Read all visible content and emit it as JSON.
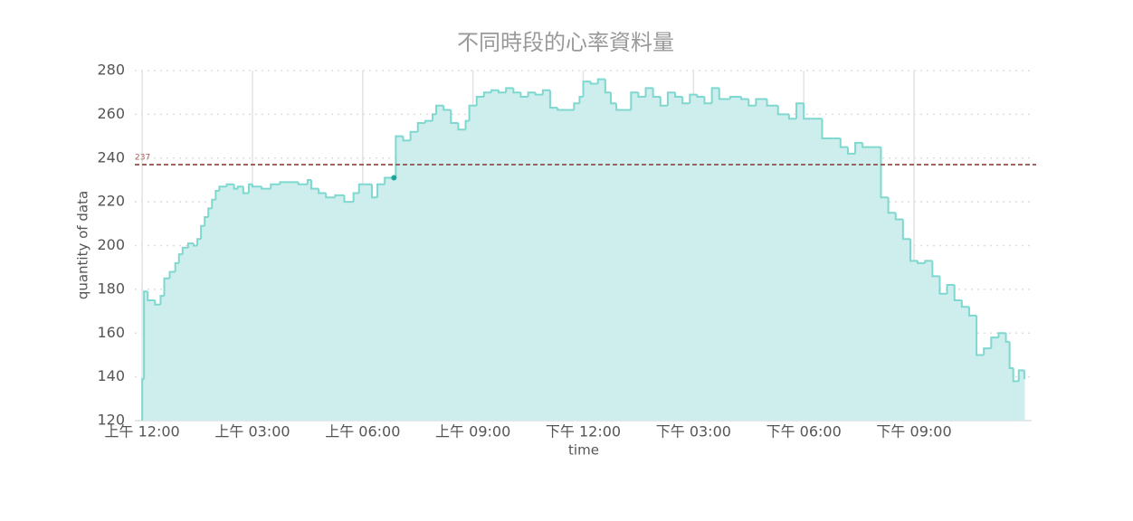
{
  "chart_data": {
    "type": "step-area",
    "title": "不同時段的心率資料量",
    "x_label": "time",
    "y_label": "quantity of data",
    "xlim": [
      -0.2,
      24.2
    ],
    "ylim": [
      120,
      280
    ],
    "xticks": [
      {
        "value": 0,
        "label": "上午 12:00"
      },
      {
        "value": 3,
        "label": "上午 03:00"
      },
      {
        "value": 6,
        "label": "上午 06:00"
      },
      {
        "value": 9,
        "label": "上午 09:00"
      },
      {
        "value": 12,
        "label": "下午 12:00"
      },
      {
        "value": 15,
        "label": "下午 03:00"
      },
      {
        "value": 18,
        "label": "下午 06:00"
      },
      {
        "value": 21,
        "label": "下午 09:00"
      }
    ],
    "yticks": [
      120,
      140,
      160,
      180,
      200,
      220,
      240,
      260,
      280
    ],
    "grid": true,
    "color": "#7fd8cf",
    "fill": "#cdeeed",
    "reference_line": {
      "value": 237,
      "color": "#a0625a"
    },
    "highlight": {
      "x": 6.85,
      "y": 231,
      "color": "#1aa89a"
    },
    "x": [
      0,
      0.05,
      0.15,
      0.35,
      0.5,
      0.6,
      0.75,
      0.9,
      1.0,
      1.1,
      1.25,
      1.4,
      1.5,
      1.6,
      1.7,
      1.8,
      1.9,
      2.0,
      2.1,
      2.3,
      2.5,
      2.6,
      2.75,
      2.9,
      3.0,
      3.25,
      3.5,
      3.75,
      4.0,
      4.25,
      4.5,
      4.6,
      4.8,
      5.0,
      5.25,
      5.5,
      5.75,
      5.9,
      6.1,
      6.25,
      6.4,
      6.6,
      6.85,
      6.9,
      7.1,
      7.3,
      7.5,
      7.7,
      7.9,
      8.0,
      8.2,
      8.4,
      8.6,
      8.8,
      8.9,
      9.1,
      9.3,
      9.5,
      9.7,
      9.9,
      10.1,
      10.3,
      10.5,
      10.7,
      10.9,
      11.1,
      11.3,
      11.5,
      11.75,
      11.9,
      12.0,
      12.2,
      12.4,
      12.6,
      12.75,
      12.9,
      13.1,
      13.3,
      13.5,
      13.7,
      13.9,
      14.1,
      14.3,
      14.5,
      14.7,
      14.9,
      15.1,
      15.3,
      15.5,
      15.7,
      16.0,
      16.3,
      16.5,
      16.7,
      17.0,
      17.3,
      17.6,
      17.8,
      18.0,
      18.3,
      18.5,
      18.8,
      19.0,
      19.2,
      19.4,
      19.6,
      19.8,
      20.0,
      20.1,
      20.3,
      20.5,
      20.7,
      20.9,
      21.1,
      21.3,
      21.5,
      21.7,
      21.9,
      22.1,
      22.3,
      22.5,
      22.7,
      22.9,
      23.1,
      23.3,
      23.5,
      23.6,
      23.7,
      23.85,
      24.0
    ],
    "values": [
      139,
      179,
      175,
      173,
      177,
      185,
      188,
      192,
      196,
      199,
      201,
      200,
      203,
      209,
      213,
      217,
      221,
      225,
      227,
      228,
      226,
      227,
      224,
      228,
      227,
      226,
      228,
      229,
      229,
      228,
      230,
      226,
      224,
      222,
      223,
      220,
      224,
      228,
      228,
      222,
      228,
      231,
      231,
      250,
      248,
      252,
      256,
      257,
      260,
      264,
      262,
      256,
      253,
      257,
      264,
      268,
      270,
      271,
      270,
      272,
      270,
      268,
      270,
      269,
      271,
      263,
      262,
      262,
      265,
      268,
      275,
      274,
      276,
      270,
      265,
      262,
      262,
      270,
      268,
      272,
      268,
      264,
      270,
      268,
      265,
      269,
      268,
      265,
      272,
      267,
      268,
      267,
      264,
      267,
      264,
      260,
      258,
      265,
      258,
      258,
      249,
      249,
      245,
      242,
      247,
      245,
      245,
      245,
      222,
      215,
      212,
      203,
      193,
      192,
      193,
      186,
      178,
      182,
      175,
      172,
      168,
      150,
      153,
      158,
      160,
      156,
      144,
      138,
      143,
      139
    ]
  }
}
